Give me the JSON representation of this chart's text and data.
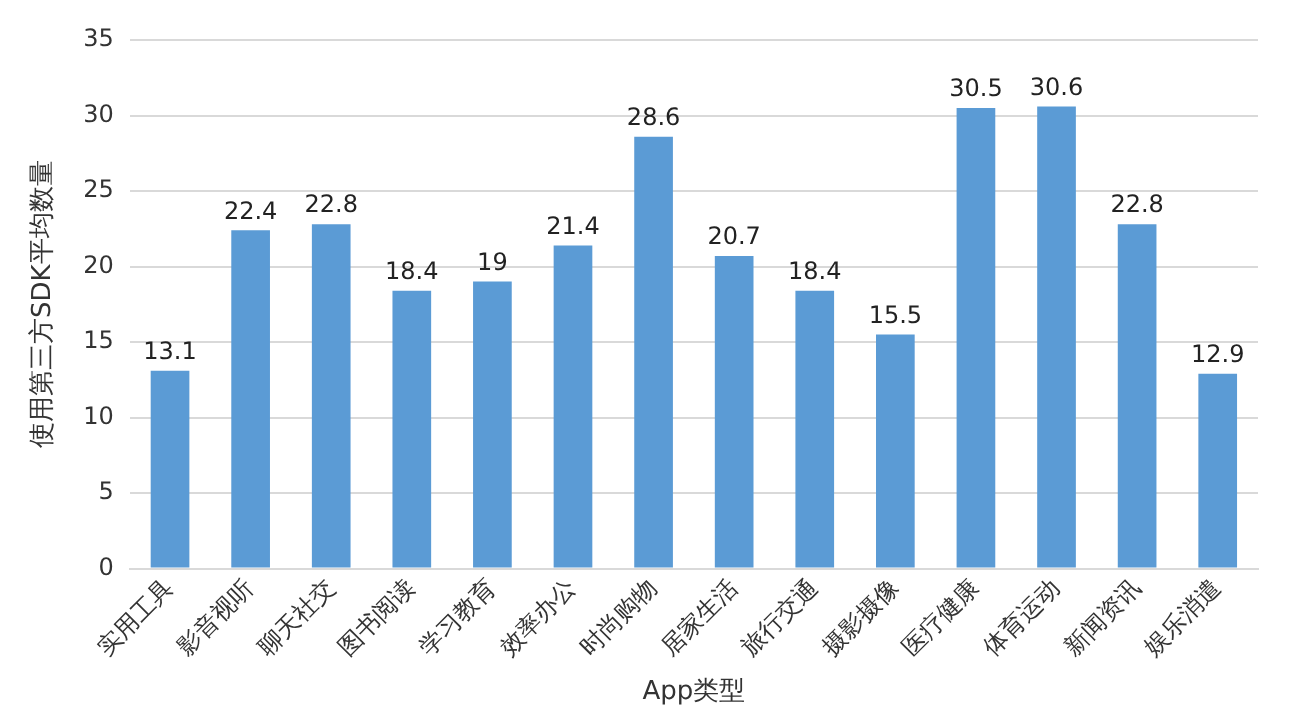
{
  "chart_data": {
    "type": "bar",
    "xlabel": "App类型",
    "ylabel": "使用第三方SDK平均数量",
    "categories": [
      "实用工具",
      "影音视听",
      "聊天社交",
      "图书阅读",
      "学习教育",
      "效率办公",
      "时尚购物",
      "居家生活",
      "旅行交通",
      "摄影摄像",
      "医疗健康",
      "体育运动",
      "新闻资讯",
      "娱乐消遣"
    ],
    "values": [
      13.1,
      22.4,
      22.8,
      18.4,
      19,
      21.4,
      28.6,
      20.7,
      18.4,
      15.5,
      30.5,
      30.6,
      22.8,
      12.9
    ],
    "color": "#5b9bd5",
    "ylim": [
      0,
      35
    ],
    "yticks": [
      0,
      5,
      10,
      15,
      20,
      25,
      30,
      35
    ],
    "grid": "y",
    "data_labels": true,
    "legend": false
  }
}
